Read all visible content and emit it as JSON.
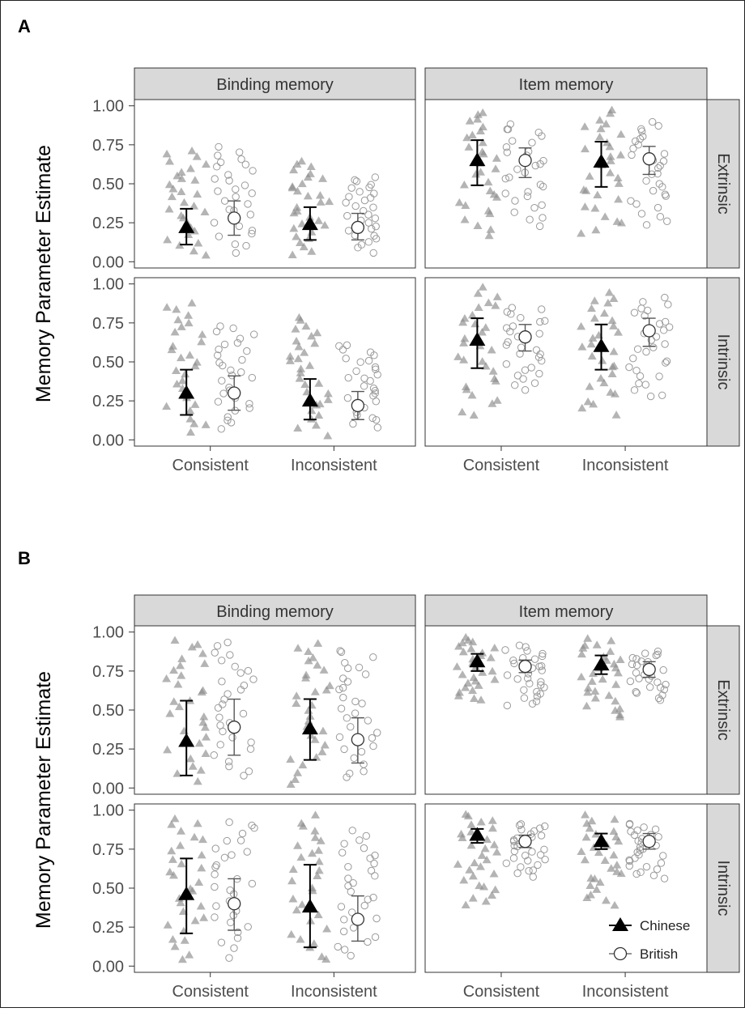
{
  "figure": {
    "panel_labels": [
      "A",
      "B"
    ],
    "ylabel": "Memory Parameter Estimate",
    "col_strips": [
      "Binding memory",
      "Item memory"
    ],
    "row_strips": [
      "Extrinsic",
      "Intrinsic"
    ],
    "x_categories": [
      "Consistent",
      "Inconsistent"
    ],
    "y_ticks": [
      "0.00",
      "0.25",
      "0.50",
      "0.75",
      "1.00"
    ],
    "legend": {
      "chinese": "Chinese",
      "british": "British"
    },
    "colors": {
      "chinese_mean": "#000000",
      "chinese_points": "#8c8c8c",
      "british_points": "#9a9a9a",
      "strip_fill": "#d9d9d9",
      "frame": "#333333"
    }
  },
  "chart_data": [
    {
      "type": "scatter",
      "panel": "A",
      "facets": [
        {
          "col": "Binding memory",
          "row": "Extrinsic",
          "Chinese": {
            "Consistent": {
              "mean": 0.22,
              "lo": 0.11,
              "hi": 0.34
            },
            "Inconsistent": {
              "mean": 0.24,
              "lo": 0.14,
              "hi": 0.35
            }
          },
          "British": {
            "Consistent": {
              "mean": 0.28,
              "lo": 0.17,
              "hi": 0.39
            },
            "Inconsistent": {
              "mean": 0.22,
              "lo": 0.14,
              "hi": 0.31
            }
          },
          "range": {
            "Chinese": {
              "Consistent": [
                0.02,
                0.72
              ],
              "Inconsistent": [
                0.03,
                0.65
              ]
            },
            "British": {
              "Consistent": [
                0.05,
                0.74
              ],
              "Inconsistent": [
                0.05,
                0.55
              ]
            }
          }
        },
        {
          "col": "Item memory",
          "row": "Extrinsic",
          "Chinese": {
            "Consistent": {
              "mean": 0.65,
              "lo": 0.49,
              "hi": 0.78
            },
            "Inconsistent": {
              "mean": 0.64,
              "lo": 0.48,
              "hi": 0.77
            }
          },
          "British": {
            "Consistent": {
              "mean": 0.65,
              "lo": 0.54,
              "hi": 0.73
            },
            "Inconsistent": {
              "mean": 0.66,
              "lo": 0.56,
              "hi": 0.74
            }
          },
          "range": {
            "Chinese": {
              "Consistent": [
                0.14,
                0.98
              ],
              "Inconsistent": [
                0.15,
                0.98
              ]
            },
            "British": {
              "Consistent": [
                0.22,
                0.89
              ],
              "Inconsistent": [
                0.22,
                0.9
              ]
            }
          }
        },
        {
          "col": "Binding memory",
          "row": "Intrinsic",
          "Chinese": {
            "Consistent": {
              "mean": 0.3,
              "lo": 0.16,
              "hi": 0.45
            },
            "Inconsistent": {
              "mean": 0.25,
              "lo": 0.13,
              "hi": 0.39
            }
          },
          "British": {
            "Consistent": {
              "mean": 0.3,
              "lo": 0.19,
              "hi": 0.41
            },
            "Inconsistent": {
              "mean": 0.22,
              "lo": 0.13,
              "hi": 0.31
            }
          },
          "range": {
            "Chinese": {
              "Consistent": [
                0.02,
                0.89
              ],
              "Inconsistent": [
                0.02,
                0.79
              ]
            },
            "British": {
              "Consistent": [
                0.06,
                0.74
              ],
              "Inconsistent": [
                0.06,
                0.62
              ]
            }
          }
        },
        {
          "col": "Item memory",
          "row": "Intrinsic",
          "Chinese": {
            "Consistent": {
              "mean": 0.64,
              "lo": 0.46,
              "hi": 0.78
            },
            "Inconsistent": {
              "mean": 0.6,
              "lo": 0.45,
              "hi": 0.74
            }
          },
          "British": {
            "Consistent": {
              "mean": 0.66,
              "lo": 0.57,
              "hi": 0.74
            },
            "Inconsistent": {
              "mean": 0.7,
              "lo": 0.6,
              "hi": 0.78
            }
          },
          "range": {
            "Chinese": {
              "Consistent": [
                0.13,
                0.98
              ],
              "Inconsistent": [
                0.14,
                0.95
              ]
            },
            "British": {
              "Consistent": [
                0.31,
                0.86
              ],
              "Inconsistent": [
                0.25,
                0.92
              ]
            }
          }
        }
      ]
    },
    {
      "type": "scatter",
      "panel": "B",
      "facets": [
        {
          "col": "Binding memory",
          "row": "Extrinsic",
          "Chinese": {
            "Consistent": {
              "mean": 0.3,
              "lo": 0.08,
              "hi": 0.56
            },
            "Inconsistent": {
              "mean": 0.38,
              "lo": 0.18,
              "hi": 0.57
            }
          },
          "British": {
            "Consistent": {
              "mean": 0.39,
              "lo": 0.21,
              "hi": 0.57
            },
            "Inconsistent": {
              "mean": 0.31,
              "lo": 0.16,
              "hi": 0.45
            }
          },
          "range": {
            "Chinese": {
              "Consistent": [
                0.01,
                0.97
              ],
              "Inconsistent": [
                0.01,
                0.93
              ]
            },
            "British": {
              "Consistent": [
                0.04,
                0.94
              ],
              "Inconsistent": [
                0.03,
                0.9
              ]
            }
          }
        },
        {
          "col": "Item memory",
          "row": "Extrinsic",
          "Chinese": {
            "Consistent": {
              "mean": 0.81,
              "lo": 0.75,
              "hi": 0.86
            },
            "Inconsistent": {
              "mean": 0.79,
              "lo": 0.73,
              "hi": 0.85
            }
          },
          "British": {
            "Consistent": {
              "mean": 0.78,
              "lo": 0.74,
              "hi": 0.82
            },
            "Inconsistent": {
              "mean": 0.76,
              "lo": 0.71,
              "hi": 0.81
            }
          },
          "range": {
            "Chinese": {
              "Consistent": [
                0.55,
                0.97
              ],
              "Inconsistent": [
                0.44,
                0.96
              ]
            },
            "British": {
              "Consistent": [
                0.51,
                0.92
              ],
              "Inconsistent": [
                0.56,
                0.88
              ]
            }
          }
        },
        {
          "col": "Binding memory",
          "row": "Intrinsic",
          "Chinese": {
            "Consistent": {
              "mean": 0.46,
              "lo": 0.21,
              "hi": 0.69
            },
            "Inconsistent": {
              "mean": 0.38,
              "lo": 0.12,
              "hi": 0.65
            }
          },
          "British": {
            "Consistent": {
              "mean": 0.4,
              "lo": 0.23,
              "hi": 0.56
            },
            "Inconsistent": {
              "mean": 0.3,
              "lo": 0.16,
              "hi": 0.45
            }
          },
          "range": {
            "Chinese": {
              "Consistent": [
                0.01,
                0.97
              ],
              "Inconsistent": [
                0.0,
                0.97
              ]
            },
            "British": {
              "Consistent": [
                0.05,
                0.94
              ],
              "Inconsistent": [
                0.05,
                0.87
              ]
            }
          }
        },
        {
          "col": "Item memory",
          "row": "Intrinsic",
          "Chinese": {
            "Consistent": {
              "mean": 0.84,
              "lo": 0.79,
              "hi": 0.88
            },
            "Inconsistent": {
              "mean": 0.8,
              "lo": 0.75,
              "hi": 0.85
            }
          },
          "British": {
            "Consistent": {
              "mean": 0.8,
              "lo": 0.76,
              "hi": 0.84
            },
            "Inconsistent": {
              "mean": 0.8,
              "lo": 0.75,
              "hi": 0.85
            }
          },
          "range": {
            "Chinese": {
              "Consistent": [
                0.37,
                0.98
              ],
              "Inconsistent": [
                0.38,
                0.97
              ]
            },
            "British": {
              "Consistent": [
                0.57,
                0.92
              ],
              "Inconsistent": [
                0.55,
                0.92
              ]
            }
          }
        }
      ]
    }
  ]
}
